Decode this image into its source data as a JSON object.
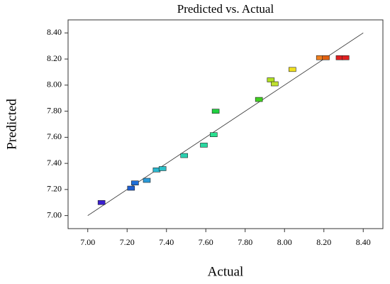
{
  "chart_data": {
    "type": "scatter",
    "title": "Predicted vs. Actual",
    "x_label": "Actual",
    "y_label": "Predicted",
    "xlim": [
      6.9,
      8.5
    ],
    "ylim": [
      6.9,
      8.5
    ],
    "xticks": [
      {
        "value": 7.0,
        "label": "7.00"
      },
      {
        "value": 7.2,
        "label": "7.20"
      },
      {
        "value": 7.4,
        "label": "7.40"
      },
      {
        "value": 7.6,
        "label": "7.60"
      },
      {
        "value": 7.8,
        "label": "7.80"
      },
      {
        "value": 8.0,
        "label": "8.00"
      },
      {
        "value": 8.2,
        "label": "8.20"
      },
      {
        "value": 8.4,
        "label": "8.40"
      }
    ],
    "yticks": [
      {
        "value": 7.0,
        "label": "7.00"
      },
      {
        "value": 7.2,
        "label": "7.20"
      },
      {
        "value": 7.4,
        "label": "7.40"
      },
      {
        "value": 7.6,
        "label": "7.60"
      },
      {
        "value": 7.8,
        "label": "7.80"
      },
      {
        "value": 8.0,
        "label": "8.00"
      },
      {
        "value": 8.2,
        "label": "8.20"
      },
      {
        "value": 8.4,
        "label": "8.40"
      }
    ],
    "x": [
      7.07,
      7.22,
      7.24,
      7.3,
      7.35,
      7.38,
      7.49,
      7.59,
      7.64,
      7.65,
      7.87,
      7.93,
      7.95,
      8.04,
      8.18,
      8.21,
      8.28,
      8.31
    ],
    "values": [
      7.1,
      7.21,
      7.25,
      7.27,
      7.35,
      7.36,
      7.46,
      7.54,
      7.62,
      7.8,
      7.89,
      8.04,
      8.01,
      8.12,
      8.21,
      8.21,
      8.21,
      8.21
    ],
    "colors": [
      "#3a1fd0",
      "#1f5fd0",
      "#1f6fd8",
      "#2a9ad8",
      "#2ab8d0",
      "#2ac0c8",
      "#2ad0b0",
      "#2ad8a0",
      "#2ae090",
      "#20d040",
      "#40d020",
      "#b0e020",
      "#c0e030",
      "#f0e020",
      "#f08020",
      "#e06010",
      "#e02020",
      "#e02020"
    ],
    "reference_line": {
      "x": [
        7.0,
        8.4
      ],
      "y": [
        7.0,
        8.4
      ]
    }
  }
}
